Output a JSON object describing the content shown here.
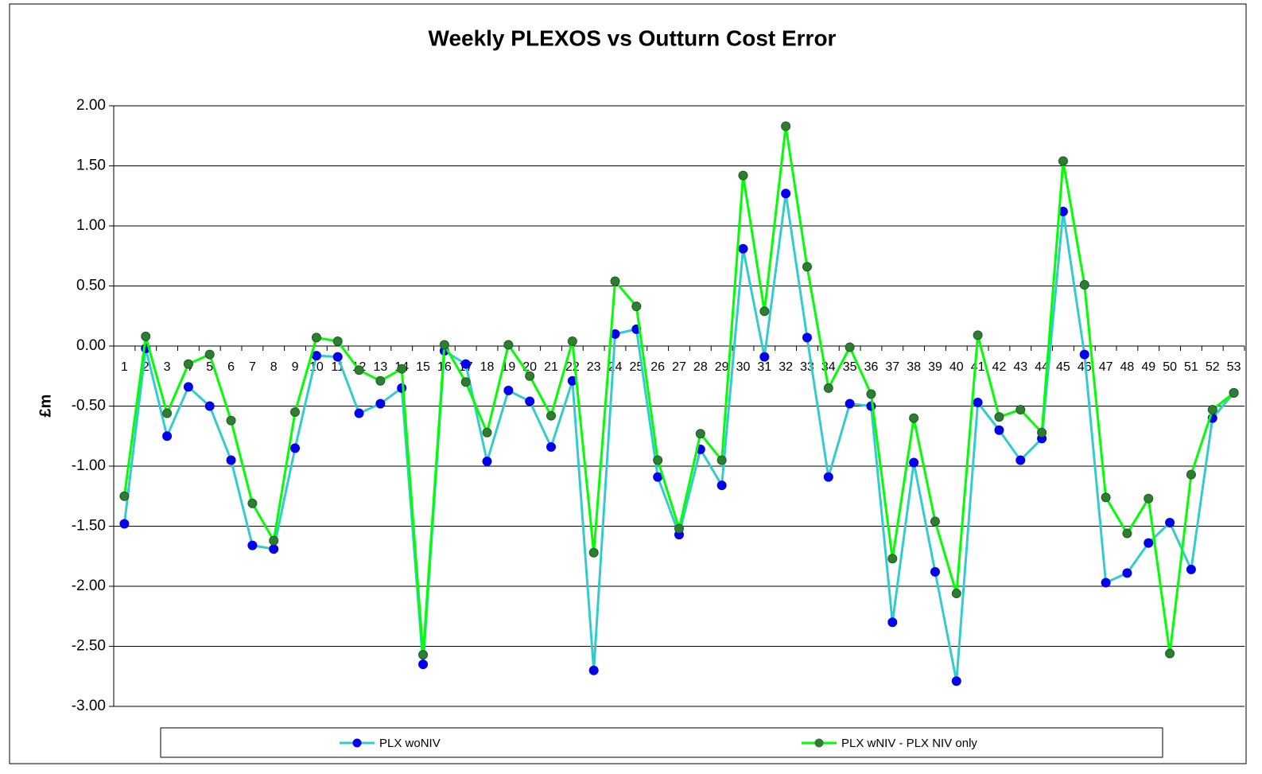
{
  "chart_data": {
    "type": "line",
    "title": "Weekly PLEXOS vs Outturn Cost Error",
    "y_label": "£m",
    "categories": [
      "1",
      "2",
      "3",
      "4",
      "5",
      "6",
      "7",
      "8",
      "9",
      "10",
      "11",
      "12",
      "13",
      "14",
      "15",
      "16",
      "17",
      "18",
      "19",
      "20",
      "21",
      "22",
      "23",
      "24",
      "25",
      "26",
      "27",
      "28",
      "29",
      "30",
      "31",
      "32",
      "33",
      "34",
      "35",
      "36",
      "37",
      "38",
      "39",
      "40",
      "41",
      "42",
      "43",
      "44",
      "45",
      "46",
      "47",
      "48",
      "49",
      "50",
      "51",
      "52",
      "53"
    ],
    "series": [
      {
        "name": "PLX woNIV",
        "color": "#33cccc",
        "marker_color": "#0000ee",
        "values": [
          -1.48,
          -0.02,
          -0.75,
          -0.34,
          -0.5,
          -0.95,
          -1.66,
          -1.69,
          -0.85,
          -0.08,
          -0.09,
          -0.56,
          -0.48,
          -0.35,
          -2.65,
          -0.04,
          -0.15,
          -0.96,
          -0.37,
          -0.46,
          -0.84,
          -0.29,
          -2.7,
          0.1,
          0.14,
          -1.09,
          -1.57,
          -0.86,
          -1.16,
          0.81,
          -0.09,
          1.27,
          0.07,
          -1.09,
          -0.48,
          -0.5,
          -2.3,
          -0.97,
          -1.88,
          -2.79,
          -0.47,
          -0.7,
          -0.95,
          -0.77,
          1.12,
          -0.07,
          -1.97,
          -1.89,
          -1.64,
          -1.47,
          -1.86,
          -0.6,
          -0.39
        ]
      },
      {
        "name": "PLX wNIV - PLX NIV only",
        "color": "#00ff00",
        "marker_color": "#2e7d32",
        "values": [
          -1.25,
          0.08,
          -0.56,
          -0.15,
          -0.07,
          -0.62,
          -1.31,
          -1.62,
          -0.55,
          0.07,
          0.04,
          -0.2,
          -0.29,
          -0.19,
          -2.57,
          0.01,
          -0.3,
          -0.72,
          0.01,
          -0.25,
          -0.58,
          0.04,
          -1.72,
          0.54,
          0.33,
          -0.95,
          -1.52,
          -0.73,
          -0.95,
          1.42,
          0.29,
          1.83,
          0.66,
          -0.35,
          -0.01,
          -0.4,
          -1.77,
          -0.6,
          -1.46,
          -2.06,
          0.09,
          -0.59,
          -0.53,
          -0.72,
          1.54,
          0.51,
          -1.26,
          -1.56,
          -1.27,
          -2.56,
          -1.07,
          -0.53,
          -0.39
        ]
      }
    ],
    "ylim": [
      -3,
      2
    ],
    "yticks": [
      {
        "value": -3,
        "label": "-3.00"
      },
      {
        "value": -2.5,
        "label": "-2.50"
      },
      {
        "value": -2,
        "label": "-2.00"
      },
      {
        "value": -1.5,
        "label": "-1.50"
      },
      {
        "value": -1,
        "label": "-1.00"
      },
      {
        "value": -0.5,
        "label": "-0.50"
      },
      {
        "value": 0,
        "label": "0.00"
      },
      {
        "value": 0.5,
        "label": "0.50"
      },
      {
        "value": 1,
        "label": "1.00"
      },
      {
        "value": 1.5,
        "label": "1.50"
      },
      {
        "value": 2,
        "label": "2.00"
      }
    ],
    "grid": true,
    "legend": "bottom"
  }
}
